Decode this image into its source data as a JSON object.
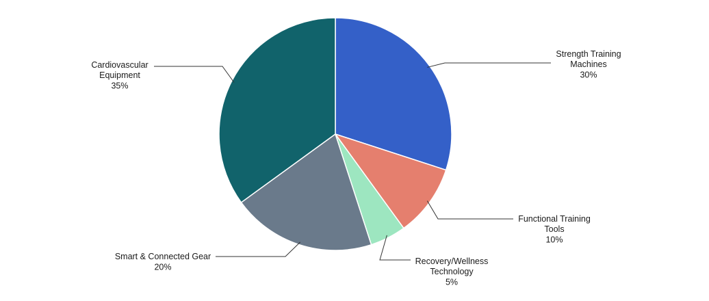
{
  "chart_data": {
    "type": "pie",
    "categories": [
      "Strength Training Machines",
      "Functional Training Tools",
      "Recovery/Wellness Technology",
      "Smart & Connected Gear",
      "Cardiovascular Equipment"
    ],
    "values": [
      30,
      10,
      5,
      20,
      35
    ],
    "value_labels": [
      "30%",
      "10%",
      "5%",
      "20%",
      "35%"
    ],
    "colors": [
      "#3460c8",
      "#e57f6e",
      "#9de6c0",
      "#6a7a8b",
      "#11636b"
    ]
  }
}
